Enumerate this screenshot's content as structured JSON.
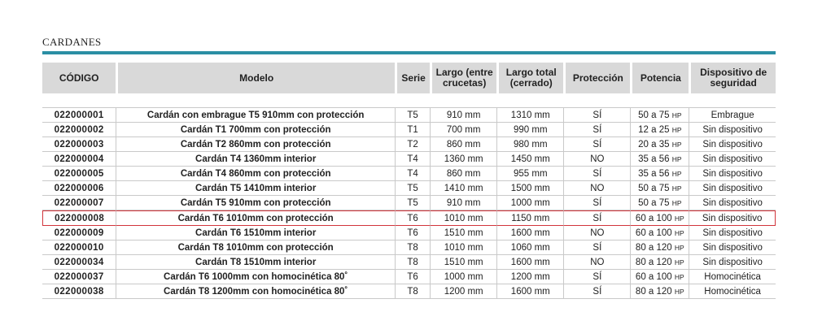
{
  "section": {
    "title": "CARDANES",
    "accent_color": "#2b8fa4",
    "highlight_color": "#d2343b"
  },
  "table": {
    "headers": {
      "codigo": "CÓDIGO",
      "modelo": "Modelo",
      "serie": "Serie",
      "largo_entre_line1": "Largo (entre",
      "largo_entre_line2": "crucetas)",
      "largo_total_line1": "Largo total",
      "largo_total_line2": "(cerrado)",
      "proteccion": "Protección",
      "potencia": "Potencia",
      "dispositivo_line1": "Dispositivo de",
      "dispositivo_line2": "seguridad"
    },
    "rows": [
      {
        "codigo": "022000001",
        "modelo": "Cardán con embrague T5 910mm con protección",
        "serie": "T5",
        "largo_entre": "910 mm",
        "largo_total": "1310 mm",
        "proteccion": "SÍ",
        "potencia": "50 a 75",
        "potencia_unit": "HP",
        "dispositivo": "Embrague"
      },
      {
        "codigo": "022000002",
        "modelo": "Cardán T1 700mm con protección",
        "serie": "T1",
        "largo_entre": "700 mm",
        "largo_total": "990 mm",
        "proteccion": "SÍ",
        "potencia": "12 a 25",
        "potencia_unit": "HP",
        "dispositivo": "Sin dispositivo"
      },
      {
        "codigo": "022000003",
        "modelo": "Cardán T2 860mm con protección",
        "serie": "T2",
        "largo_entre": "860 mm",
        "largo_total": "980 mm",
        "proteccion": "SÍ",
        "potencia": "20 a 35",
        "potencia_unit": "HP",
        "dispositivo": "Sin dispositivo"
      },
      {
        "codigo": "022000004",
        "modelo": "Cardán T4 1360mm interior",
        "serie": "T4",
        "largo_entre": "1360 mm",
        "largo_total": "1450 mm",
        "proteccion": "NO",
        "potencia": "35 a 56",
        "potencia_unit": "HP",
        "dispositivo": "Sin dispositivo"
      },
      {
        "codigo": "022000005",
        "modelo": "Cardán T4 860mm con protección",
        "serie": "T4",
        "largo_entre": "860 mm",
        "largo_total": "955 mm",
        "proteccion": "SÍ",
        "potencia": "35 a 56",
        "potencia_unit": "HP",
        "dispositivo": "Sin dispositivo"
      },
      {
        "codigo": "022000006",
        "modelo": "Cardán T5 1410mm interior",
        "serie": "T5",
        "largo_entre": "1410 mm",
        "largo_total": "1500 mm",
        "proteccion": "NO",
        "potencia": "50 a 75",
        "potencia_unit": "HP",
        "dispositivo": "Sin dispositivo"
      },
      {
        "codigo": "022000007",
        "modelo": "Cardán T5 910mm con protección",
        "serie": "T5",
        "largo_entre": "910 mm",
        "largo_total": "1000 mm",
        "proteccion": "SÍ",
        "potencia": "50 a 75",
        "potencia_unit": "HP",
        "dispositivo": "Sin dispositivo"
      },
      {
        "codigo": "022000008",
        "modelo": "Cardán T6 1010mm con protección",
        "serie": "T6",
        "largo_entre": "1010 mm",
        "largo_total": "1150 mm",
        "proteccion": "SÍ",
        "potencia": "60 a 100",
        "potencia_unit": "HP",
        "dispositivo": "Sin dispositivo",
        "highlighted": true
      },
      {
        "codigo": "022000009",
        "modelo": "Cardán T6 1510mm interior",
        "serie": "T6",
        "largo_entre": "1510 mm",
        "largo_total": "1600 mm",
        "proteccion": "NO",
        "potencia": "60 a 100",
        "potencia_unit": "HP",
        "dispositivo": "Sin dispositivo"
      },
      {
        "codigo": "022000010",
        "modelo": "Cardán T8 1010mm con protección",
        "serie": "T8",
        "largo_entre": "1010 mm",
        "largo_total": "1060 mm",
        "proteccion": "SÍ",
        "potencia": "80 a 120",
        "potencia_unit": "HP",
        "dispositivo": "Sin dispositivo"
      },
      {
        "codigo": "022000034",
        "modelo": "Cardán T8 1510mm interior",
        "serie": "T8",
        "largo_entre": "1510 mm",
        "largo_total": "1600 mm",
        "proteccion": "NO",
        "potencia": "80 a 120",
        "potencia_unit": "HP",
        "dispositivo": "Sin dispositivo"
      },
      {
        "codigo": "022000037",
        "modelo": "Cardán T6 1000mm con homocinética 80˚",
        "serie": "T6",
        "largo_entre": "1000 mm",
        "largo_total": "1200 mm",
        "proteccion": "SÍ",
        "potencia": "60 a 100",
        "potencia_unit": "HP",
        "dispositivo": "Homocinética"
      },
      {
        "codigo": "022000038",
        "modelo": "Cardán T8 1200mm con homocinética 80˚",
        "serie": "T8",
        "largo_entre": "1200 mm",
        "largo_total": "1600 mm",
        "proteccion": "SÍ",
        "potencia": "80 a 120",
        "potencia_unit": "HP",
        "dispositivo": "Homocinética"
      }
    ]
  }
}
